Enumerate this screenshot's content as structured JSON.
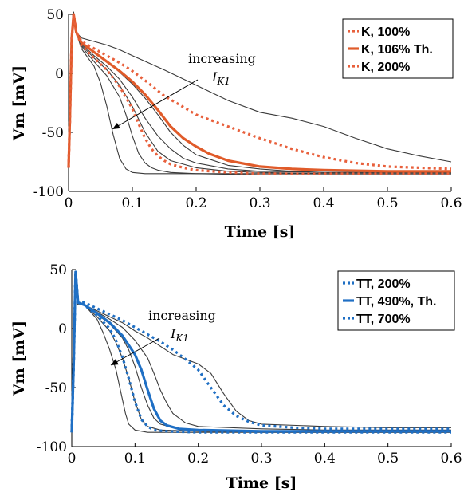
{
  "chart_data": [
    {
      "type": "line",
      "xlabel": "Time [s]",
      "ylabel": "Vm [mV]",
      "xlim": [
        0,
        0.6
      ],
      "ylim": [
        -100,
        50
      ],
      "xticks": [
        "0",
        "0.1",
        "0.2",
        "0.3",
        "0.4",
        "0.5",
        "0.6"
      ],
      "yticks": [
        "50",
        "0",
        "-50",
        "-100"
      ],
      "annotation": {
        "line1": "increasing",
        "line2": "I",
        "sub": "K1"
      },
      "legend_position": "top-right",
      "gray_traces": [
        {
          "x": [
            0,
            0.002,
            0.005,
            0.008,
            0.012,
            0.02,
            0.04,
            0.06,
            0.08,
            0.1,
            0.15,
            0.2,
            0.25,
            0.3,
            0.35,
            0.4,
            0.45,
            0.5,
            0.55,
            0.6
          ],
          "y": [
            -80,
            -40,
            30,
            52,
            35,
            30,
            27,
            24,
            20,
            15,
            3,
            -10,
            -23,
            -33,
            -38,
            -45,
            -55,
            -64,
            -70,
            -75
          ]
        },
        {
          "x": [
            0,
            0.002,
            0.005,
            0.008,
            0.012,
            0.02,
            0.04,
            0.06,
            0.08,
            0.1,
            0.12,
            0.14,
            0.16,
            0.18,
            0.2,
            0.25,
            0.3,
            0.35,
            0.4,
            0.5,
            0.6
          ],
          "y": [
            -80,
            -40,
            30,
            50,
            35,
            26,
            18,
            10,
            1,
            -9,
            -21,
            -35,
            -50,
            -61,
            -69,
            -78,
            -81,
            -83,
            -84,
            -84,
            -84
          ]
        },
        {
          "x": [
            0,
            0.002,
            0.005,
            0.008,
            0.012,
            0.02,
            0.04,
            0.06,
            0.08,
            0.1,
            0.12,
            0.14,
            0.16,
            0.18,
            0.2,
            0.25,
            0.3,
            0.4,
            0.5,
            0.6
          ],
          "y": [
            -80,
            -40,
            30,
            50,
            35,
            25,
            15,
            6,
            -5,
            -20,
            -38,
            -53,
            -64,
            -72,
            -76,
            -81,
            -83,
            -84,
            -84,
            -84
          ]
        },
        {
          "x": [
            0,
            0.002,
            0.005,
            0.008,
            0.012,
            0.02,
            0.04,
            0.06,
            0.08,
            0.1,
            0.12,
            0.14,
            0.16,
            0.2,
            0.25,
            0.3,
            0.4,
            0.5,
            0.6
          ],
          "y": [
            -80,
            -40,
            30,
            50,
            35,
            24,
            13,
            3,
            -10,
            -28,
            -50,
            -66,
            -74,
            -80,
            -83,
            -84,
            -85,
            -85,
            -85
          ]
        },
        {
          "x": [
            0,
            0.002,
            0.005,
            0.008,
            0.012,
            0.02,
            0.04,
            0.06,
            0.08,
            0.09,
            0.1,
            0.11,
            0.12,
            0.13,
            0.14,
            0.16,
            0.2,
            0.3,
            0.4,
            0.5,
            0.6
          ],
          "y": [
            -80,
            -40,
            30,
            50,
            35,
            23,
            10,
            -2,
            -20,
            -35,
            -53,
            -68,
            -76,
            -80,
            -82,
            -84,
            -85,
            -85,
            -85,
            -85,
            -85
          ]
        },
        {
          "x": [
            0,
            0.002,
            0.005,
            0.008,
            0.012,
            0.02,
            0.04,
            0.05,
            0.06,
            0.07,
            0.08,
            0.09,
            0.1,
            0.12,
            0.15,
            0.2,
            0.3,
            0.4,
            0.5,
            0.6
          ],
          "y": [
            -80,
            -40,
            30,
            50,
            35,
            21,
            6,
            -8,
            -28,
            -52,
            -72,
            -81,
            -84,
            -85,
            -85,
            -85,
            -86,
            -86,
            -86,
            -86
          ]
        }
      ],
      "series": [
        {
          "name": "K, 100%",
          "style": "dotted",
          "color": "#e8603c",
          "x": [
            0,
            0.002,
            0.005,
            0.008,
            0.012,
            0.02,
            0.04,
            0.06,
            0.08,
            0.1,
            0.11,
            0.12,
            0.13,
            0.14,
            0.15,
            0.16,
            0.18,
            0.2,
            0.25,
            0.3,
            0.4,
            0.5,
            0.6
          ],
          "y": [
            -80,
            -40,
            30,
            50,
            35,
            24,
            13,
            3,
            -11,
            -30,
            -43,
            -55,
            -64,
            -70,
            -74,
            -77,
            -80,
            -82,
            -84,
            -85,
            -85,
            -85,
            -85
          ]
        },
        {
          "name": "K, 106% Th.",
          "style": "solid",
          "color": "#e05b2a",
          "x": [
            0,
            0.002,
            0.005,
            0.008,
            0.012,
            0.02,
            0.04,
            0.06,
            0.08,
            0.1,
            0.12,
            0.14,
            0.16,
            0.18,
            0.2,
            0.22,
            0.25,
            0.3,
            0.35,
            0.4,
            0.5,
            0.6
          ],
          "y": [
            -80,
            -40,
            30,
            50,
            35,
            26,
            18,
            10,
            2,
            -7,
            -18,
            -31,
            -45,
            -55,
            -62,
            -68,
            -74,
            -79,
            -81,
            -82,
            -83,
            -83
          ]
        },
        {
          "name": "K, 200%",
          "style": "dotted",
          "color": "#e8603c",
          "x": [
            0,
            0.002,
            0.005,
            0.008,
            0.012,
            0.02,
            0.04,
            0.06,
            0.08,
            0.1,
            0.12,
            0.15,
            0.2,
            0.25,
            0.3,
            0.35,
            0.4,
            0.45,
            0.5,
            0.55,
            0.6
          ],
          "y": [
            -80,
            -40,
            30,
            50,
            35,
            27,
            21,
            15,
            9,
            2,
            -6,
            -19,
            -35,
            -45,
            -55,
            -64,
            -71,
            -76,
            -79,
            -80,
            -81
          ]
        }
      ]
    },
    {
      "type": "line",
      "xlabel": "Time [s]",
      "ylabel": "Vm [mV]",
      "xlim": [
        0,
        0.6
      ],
      "ylim": [
        -100,
        50
      ],
      "xticks": [
        "0",
        "0.1",
        "0.2",
        "0.3",
        "0.4",
        "0.5",
        "0.6"
      ],
      "yticks": [
        "50",
        "0",
        "-50",
        "-100"
      ],
      "annotation": {
        "line1": "increasing",
        "line2": "I",
        "sub": "K1"
      },
      "legend_position": "top-right",
      "gray_traces": [
        {
          "x": [
            0,
            0.003,
            0.006,
            0.01,
            0.02,
            0.04,
            0.06,
            0.08,
            0.1,
            0.12,
            0.14,
            0.16,
            0.18,
            0.2,
            0.22,
            0.24,
            0.26,
            0.28,
            0.3,
            0.4,
            0.5,
            0.6
          ],
          "y": [
            -88,
            -30,
            40,
            20,
            20,
            15,
            10,
            5,
            -2,
            -8,
            -15,
            -22,
            -26,
            -30,
            -38,
            -55,
            -70,
            -78,
            -81,
            -83,
            -84,
            -84
          ]
        },
        {
          "x": [
            0,
            0.003,
            0.006,
            0.01,
            0.02,
            0.04,
            0.06,
            0.08,
            0.1,
            0.12,
            0.13,
            0.14,
            0.15,
            0.16,
            0.18,
            0.2,
            0.3,
            0.4,
            0.5,
            0.6
          ],
          "y": [
            -88,
            -30,
            40,
            20,
            20,
            14,
            8,
            1,
            -10,
            -25,
            -38,
            -52,
            -63,
            -72,
            -80,
            -83,
            -85,
            -86,
            -86,
            -86
          ]
        },
        {
          "x": [
            0,
            0.003,
            0.006,
            0.01,
            0.02,
            0.04,
            0.06,
            0.08,
            0.09,
            0.1,
            0.11,
            0.12,
            0.13,
            0.14,
            0.16,
            0.2,
            0.3,
            0.4,
            0.5,
            0.6
          ],
          "y": [
            -88,
            -30,
            40,
            20,
            20,
            12,
            4,
            -8,
            -18,
            -32,
            -50,
            -65,
            -76,
            -81,
            -84,
            -86,
            -87,
            -87,
            -87,
            -87
          ]
        },
        {
          "x": [
            0,
            0.003,
            0.006,
            0.01,
            0.02,
            0.04,
            0.06,
            0.07,
            0.08,
            0.09,
            0.1,
            0.11,
            0.12,
            0.14,
            0.2,
            0.3,
            0.4,
            0.5,
            0.6
          ],
          "y": [
            -88,
            -30,
            40,
            20,
            20,
            10,
            -2,
            -12,
            -25,
            -42,
            -62,
            -77,
            -83,
            -86,
            -87,
            -88,
            -88,
            -88,
            -88
          ]
        },
        {
          "x": [
            0,
            0.003,
            0.006,
            0.01,
            0.02,
            0.04,
            0.05,
            0.06,
            0.07,
            0.08,
            0.085,
            0.09,
            0.1,
            0.12,
            0.2,
            0.3,
            0.4,
            0.5,
            0.6
          ],
          "y": [
            -88,
            -30,
            40,
            20,
            20,
            8,
            -4,
            -18,
            -35,
            -60,
            -72,
            -81,
            -86,
            -88,
            -88,
            -88,
            -88,
            -88,
            -88
          ]
        }
      ],
      "series": [
        {
          "name": "TT, 200%",
          "style": "dotted",
          "color": "#1f6fc4",
          "x": [
            0,
            0.003,
            0.006,
            0.01,
            0.02,
            0.04,
            0.06,
            0.08,
            0.1,
            0.12,
            0.14,
            0.16,
            0.18,
            0.2,
            0.22,
            0.24,
            0.26,
            0.28,
            0.3,
            0.35,
            0.4,
            0.5,
            0.6
          ],
          "y": [
            -88,
            -30,
            48,
            22,
            22,
            17,
            12,
            7,
            1,
            -5,
            -11,
            -18,
            -26,
            -35,
            -50,
            -65,
            -74,
            -79,
            -82,
            -84,
            -85,
            -85,
            -85
          ]
        },
        {
          "name": "TT, 490%, Th.",
          "style": "solid",
          "color": "#1f6fc4",
          "x": [
            0,
            0.003,
            0.006,
            0.01,
            0.02,
            0.04,
            0.06,
            0.08,
            0.1,
            0.11,
            0.12,
            0.13,
            0.14,
            0.15,
            0.17,
            0.2,
            0.3,
            0.4,
            0.5,
            0.6
          ],
          "y": [
            -88,
            -30,
            48,
            22,
            20,
            13,
            5,
            -6,
            -22,
            -35,
            -52,
            -68,
            -78,
            -82,
            -85,
            -86,
            -87,
            -87,
            -87,
            -87
          ]
        },
        {
          "name": "TT, 700%",
          "style": "dotted",
          "color": "#1f6fc4",
          "x": [
            0,
            0.003,
            0.006,
            0.01,
            0.02,
            0.04,
            0.06,
            0.07,
            0.08,
            0.09,
            0.1,
            0.11,
            0.12,
            0.13,
            0.15,
            0.2,
            0.3,
            0.4,
            0.5,
            0.6
          ],
          "y": [
            -88,
            -30,
            48,
            22,
            20,
            11,
            0,
            -10,
            -24,
            -42,
            -62,
            -77,
            -83,
            -86,
            -87,
            -88,
            -88,
            -88,
            -88,
            -88
          ]
        }
      ]
    }
  ]
}
